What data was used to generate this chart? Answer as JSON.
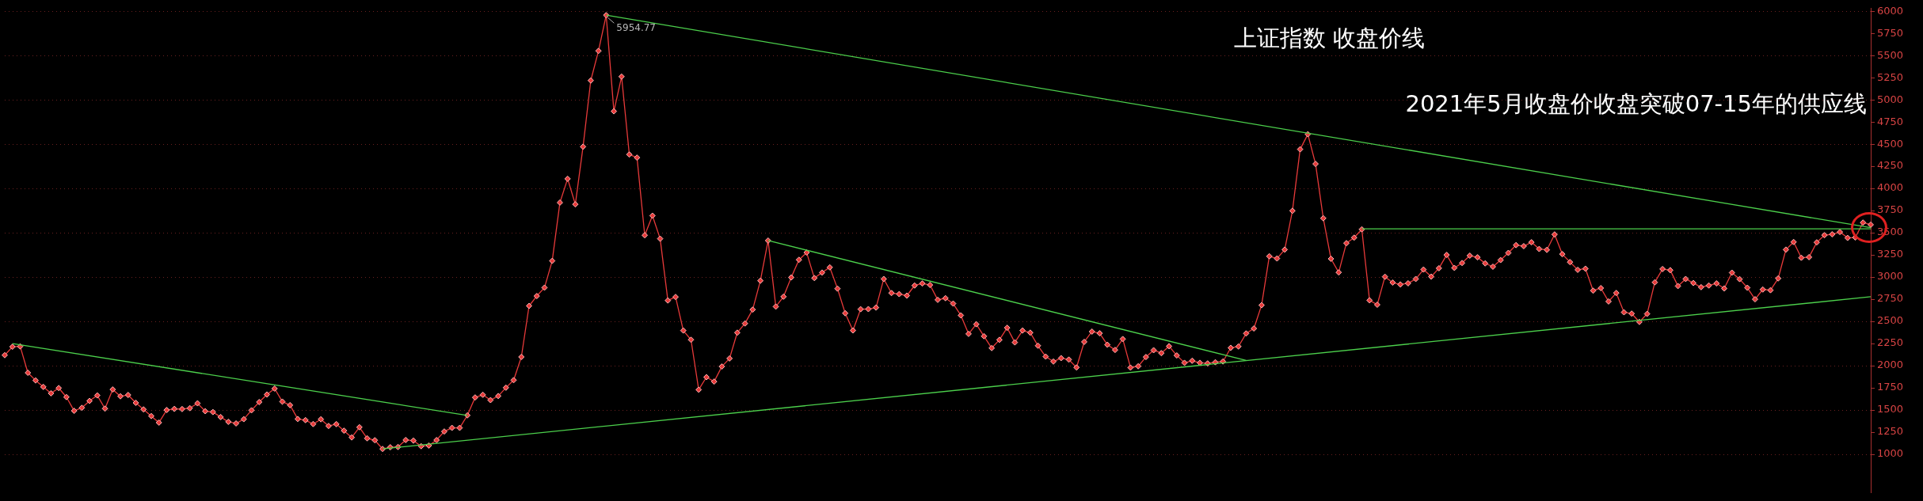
{
  "chart_data": {
    "type": "line",
    "title": "上证指数 收盘价线",
    "annotations": [
      "2021年5月收盘价收盘突破07-15年的供应线",
      "5954.77"
    ],
    "categories": [
      null,
      null,
      null,
      null,
      null,
      null,
      null,
      null,
      null,
      null,
      null,
      null,
      null,
      null,
      null,
      null,
      null,
      null,
      null,
      null,
      null,
      null,
      null,
      null,
      null,
      null,
      null,
      null,
      null,
      null,
      null,
      null,
      null,
      null,
      null,
      null,
      null,
      null,
      null,
      null,
      null,
      null,
      null,
      null,
      null,
      null,
      null,
      null,
      null,
      null,
      null,
      null,
      null,
      null,
      null,
      null,
      null,
      null,
      null,
      null,
      null,
      null,
      null,
      null,
      null,
      null,
      null,
      null,
      null,
      null,
      null,
      null,
      null,
      null,
      null,
      null,
      null,
      null,
      null,
      null,
      null,
      null,
      null,
      null,
      null,
      null,
      null,
      null,
      null,
      null,
      null,
      null,
      null,
      null,
      null,
      null,
      null,
      null,
      null,
      null,
      null,
      null,
      null,
      null,
      null,
      null,
      null,
      null,
      null,
      null,
      null,
      null,
      null,
      null,
      null,
      null,
      null,
      null,
      null,
      null,
      null,
      null,
      null,
      null,
      null,
      null,
      null,
      null,
      null,
      null,
      null,
      null,
      null,
      null,
      null,
      null,
      null,
      null,
      null,
      null,
      null,
      null,
      null,
      null,
      null,
      null,
      null,
      null,
      null,
      null,
      null,
      null,
      null,
      null,
      null,
      null,
      null,
      null,
      null,
      null,
      null,
      null,
      null,
      null,
      null,
      null,
      null,
      null,
      null,
      null,
      null,
      null,
      null,
      null,
      null,
      null,
      null,
      null,
      null,
      null,
      null,
      null,
      null,
      null,
      null,
      null,
      null,
      null,
      null,
      null,
      null,
      null,
      null,
      null,
      null,
      null,
      null,
      null,
      null,
      null,
      null,
      null,
      null,
      null,
      null,
      null,
      null,
      null,
      null,
      null,
      null,
      null,
      null,
      null,
      null,
      null,
      null,
      null,
      null,
      null,
      null,
      null,
      null,
      null,
      null,
      null,
      null,
      null,
      null,
      null,
      null,
      null,
      null,
      null,
      null,
      null,
      null,
      null,
      null,
      null,
      null,
      null,
      null
    ],
    "ylim": [
      570,
      6030
    ],
    "yticks": [
      1000,
      1250,
      1500,
      1750,
      2000,
      2250,
      2500,
      2750,
      3000,
      3250,
      3500,
      3750,
      4000,
      4250,
      4500,
      4750,
      5000,
      5250,
      5500,
      5750,
      6000
    ],
    "grid": "y",
    "legend": false,
    "tick_labels": "y",
    "marker": "diamond",
    "series": [
      {
        "color": "#e83a3a",
        "values": [
          2119,
          2214,
          2218,
          1920,
          1834,
          1761,
          1689,
          1748,
          1646,
          1491,
          1525,
          1603,
          1665,
          1516,
          1732,
          1655,
          1670,
          1581,
          1507,
          1432,
          1358,
          1500,
          1513,
          1511,
          1521,
          1576,
          1487,
          1477,
          1421,
          1367,
          1349,
          1397,
          1497,
          1590,
          1675,
          1742,
          1595,
          1555,
          1399,
          1386,
          1342,
          1396,
          1320,
          1341,
          1267,
          1191,
          1306,
          1181,
          1159,
          1061,
          1080,
          1083,
          1162,
          1155,
          1092,
          1099,
          1161,
          1258,
          1299,
          1299,
          1440,
          1642,
          1672,
          1612,
          1658,
          1752,
          1837,
          2099,
          2675,
          2786,
          2881,
          3183,
          3841,
          4109,
          3821,
          4471,
          5218,
          5552,
          5954.77,
          4871,
          5262,
          4383,
          4348,
          3472,
          3693,
          3433,
          2736,
          2776,
          2397,
          2293,
          1729,
          1871,
          1821,
          1991,
          2082,
          2373,
          2477,
          2633,
          2959,
          3412,
          2667,
          2779,
          2996,
          3195,
          3277,
          2989,
          3051,
          3110,
          2870,
          2592,
          2398,
          2638,
          2639,
          2656,
          2979,
          2820,
          2808,
          2791,
          2905,
          2928,
          2911,
          2743,
          2762,
          2701,
          2568,
          2359,
          2468,
          2333,
          2199,
          2292,
          2428,
          2263,
          2397,
          2373,
          2226,
          2103,
          2047,
          2086,
          2069,
          1980,
          2269,
          2385,
          2366,
          2237,
          2178,
          2301,
          1979,
          1994,
          2098,
          2175,
          2142,
          2220,
          2116,
          2033,
          2056,
          2033,
          2026,
          2039,
          2048,
          2202,
          2217,
          2364,
          2420,
          2683,
          3235,
          3210,
          3310,
          3748,
          4442,
          4612,
          4277,
          3664,
          3206,
          3053,
          3383,
          3445,
          3539,
          2738,
          2688,
          3004,
          2938,
          2917,
          2930,
          2979,
          3085,
          3005,
          3100,
          3250,
          3104,
          3159,
          3242,
          3223,
          3155,
          3117,
          3192,
          3273,
          3361,
          3349,
          3393,
          3317,
          3307,
          3481,
          3259,
          3169,
          3082,
          3095,
          2847,
          2876,
          2725,
          2821,
          2603,
          2588,
          2494,
          2585,
          2941,
          3091,
          3078,
          2899,
          2979,
          2933,
          2886,
          2905,
          2929,
          2872,
          3050,
          2977,
          2880,
          2750,
          2860,
          2852,
          2985,
          3310,
          3396,
          3218,
          3225,
          3392,
          3473,
          3483,
          3509,
          3442,
          3447,
          3615,
          3591
        ]
      },
      {
        "color": "#4cd04c",
        "marker": "none",
        "values": [
          null,
          2250,
          null,
          null,
          null,
          null,
          null,
          null,
          null,
          null,
          null,
          null,
          null,
          null,
          null,
          null,
          null,
          null,
          null,
          null,
          null,
          null,
          null,
          null,
          null,
          null,
          null,
          null,
          null,
          null,
          null,
          null,
          null,
          null,
          null,
          null,
          null,
          null,
          null,
          null,
          null,
          null,
          null,
          null,
          null,
          null,
          null,
          null,
          null,
          null,
          null,
          null,
          null,
          null,
          null,
          null,
          null,
          null,
          null,
          null,
          1440,
          null,
          null,
          null,
          null,
          null,
          null,
          null,
          null,
          null,
          null,
          null,
          null,
          null,
          null,
          null,
          null,
          null,
          null,
          null,
          null,
          null,
          null,
          null,
          null,
          null,
          null,
          null,
          null,
          null,
          null,
          null,
          null,
          null,
          null,
          null,
          null,
          null,
          null,
          null,
          null,
          null,
          null,
          null,
          null,
          null,
          null,
          null,
          null,
          null,
          null,
          null,
          null,
          null,
          null,
          null,
          null,
          null,
          null,
          null,
          null,
          null,
          null,
          null,
          null,
          null,
          null,
          null,
          null,
          null,
          null,
          null,
          null,
          null,
          null,
          null,
          null,
          null,
          null,
          null,
          null,
          null,
          null,
          null,
          null,
          null,
          null,
          null,
          null,
          null,
          null,
          null,
          null,
          null,
          null,
          null,
          null,
          null,
          null,
          null,
          null,
          null,
          null,
          null,
          null,
          null,
          null,
          null,
          null,
          null,
          null,
          null,
          null,
          null,
          null,
          null,
          null,
          null,
          null,
          null,
          null,
          null,
          null,
          null,
          null,
          null,
          null,
          null,
          null,
          null,
          null,
          null,
          null,
          null,
          null,
          null,
          null,
          null,
          null,
          null,
          null,
          null,
          null,
          null,
          null,
          null,
          null,
          null,
          null,
          null,
          null,
          null,
          null,
          null,
          null,
          null,
          null,
          null,
          null,
          null,
          null,
          null,
          null,
          null,
          null,
          null,
          null,
          null,
          null,
          null,
          null,
          null,
          null,
          null,
          null,
          null,
          null,
          null,
          null,
          null,
          null,
          null,
          null
        ]
      },
      {
        "color": "#4cd04c",
        "marker": "none",
        "values": [
          null,
          null,
          null,
          null,
          null,
          null,
          null,
          null,
          null,
          null,
          null,
          null,
          null,
          null,
          null,
          null,
          null,
          null,
          null,
          null,
          null,
          null,
          null,
          null,
          null,
          null,
          null,
          null,
          null,
          null,
          null,
          null,
          null,
          null,
          null,
          null,
          null,
          null,
          null,
          null,
          null,
          null,
          null,
          null,
          null,
          null,
          null,
          null,
          null,
          1061,
          null,
          null,
          null,
          null,
          null,
          null,
          null,
          null,
          null,
          null,
          null,
          null,
          null,
          null,
          null,
          null,
          null,
          null,
          null,
          null,
          null,
          null,
          null,
          null,
          null,
          null,
          null,
          null,
          null,
          null,
          null,
          null,
          null,
          null,
          null,
          null,
          null,
          null,
          null,
          null,
          null,
          null,
          null,
          null,
          null,
          null,
          null,
          null,
          null,
          null,
          null,
          null,
          null,
          null,
          null,
          null,
          null,
          null,
          null,
          null,
          null,
          null,
          null,
          null,
          null,
          null,
          null,
          null,
          null,
          null,
          null,
          null,
          null,
          null,
          null,
          null,
          null,
          null,
          null,
          null,
          null,
          null,
          null,
          null,
          null,
          null,
          null,
          null,
          null,
          null,
          null,
          null,
          null,
          null,
          null,
          null,
          null,
          null,
          null,
          null,
          null,
          null,
          null,
          null,
          null,
          null,
          null,
          null,
          null,
          null,
          null,
          null,
          null,
          null,
          null,
          null,
          null,
          null,
          null,
          null,
          null,
          null,
          null,
          null,
          null,
          null,
          null,
          null,
          null,
          null,
          null,
          null,
          null,
          null,
          null,
          null,
          null,
          null,
          null,
          null,
          null,
          null,
          null,
          null,
          null,
          null,
          null,
          null,
          null,
          null,
          null,
          null,
          null,
          null,
          null,
          null,
          null,
          null,
          null,
          null,
          null,
          null,
          null,
          null,
          null,
          null,
          null,
          null,
          null,
          null,
          null,
          null,
          null,
          null,
          null,
          null,
          null,
          null,
          null,
          null,
          null,
          null,
          null,
          null,
          null,
          null,
          null,
          null,
          null,
          null,
          null,
          null,
          2778
        ]
      },
      {
        "color": "#4cd04c",
        "marker": "none",
        "values": [
          null,
          null,
          null,
          null,
          null,
          null,
          null,
          null,
          null,
          null,
          null,
          null,
          null,
          null,
          null,
          null,
          null,
          null,
          null,
          null,
          null,
          null,
          null,
          null,
          null,
          null,
          null,
          null,
          null,
          null,
          null,
          null,
          null,
          null,
          null,
          null,
          null,
          null,
          null,
          null,
          null,
          null,
          null,
          null,
          null,
          null,
          null,
          null,
          null,
          null,
          null,
          null,
          null,
          null,
          null,
          null,
          null,
          null,
          null,
          null,
          null,
          null,
          null,
          null,
          null,
          null,
          null,
          null,
          null,
          null,
          null,
          null,
          null,
          null,
          null,
          null,
          null,
          null,
          5954.77,
          null,
          null,
          null,
          null,
          null,
          null,
          null,
          null,
          null,
          null,
          null,
          null,
          null,
          null,
          null,
          null,
          null,
          null,
          null,
          null,
          null,
          null,
          null,
          null,
          null,
          null,
          null,
          null,
          null,
          null,
          null,
          null,
          null,
          null,
          null,
          null,
          null,
          null,
          null,
          null,
          null,
          null,
          null,
          null,
          null,
          null,
          null,
          null,
          null,
          null,
          null,
          null,
          null,
          null,
          null,
          null,
          null,
          null,
          null,
          null,
          null,
          null,
          null,
          null,
          null,
          null,
          null,
          null,
          null,
          null,
          null,
          null,
          null,
          null,
          null,
          null,
          null,
          null,
          null,
          null,
          null,
          null,
          null,
          null,
          null,
          null,
          null,
          null,
          null,
          null,
          null,
          null,
          null,
          null,
          null,
          null,
          null,
          null,
          null,
          null,
          null,
          null,
          null,
          null,
          null,
          null,
          null,
          null,
          null,
          null,
          null,
          null,
          null,
          null,
          null,
          null,
          null,
          null,
          null,
          null,
          null,
          null,
          null,
          null,
          null,
          null,
          null,
          null,
          null,
          null,
          null,
          null,
          null,
          null,
          null,
          null,
          null,
          null,
          null,
          null,
          null,
          null,
          null,
          null,
          null,
          null,
          null,
          null,
          null,
          null,
          null,
          null,
          null,
          null,
          null,
          null,
          null,
          null,
          null,
          null,
          null,
          null,
          null,
          3557
        ]
      },
      {
        "color": "#4cd04c",
        "marker": "none",
        "values": [
          null,
          null,
          null,
          null,
          null,
          null,
          null,
          null,
          null,
          null,
          null,
          null,
          null,
          null,
          null,
          null,
          null,
          null,
          null,
          null,
          null,
          null,
          null,
          null,
          null,
          null,
          null,
          null,
          null,
          null,
          null,
          null,
          null,
          null,
          null,
          null,
          null,
          null,
          null,
          null,
          null,
          null,
          null,
          null,
          null,
          null,
          null,
          null,
          null,
          null,
          null,
          null,
          null,
          null,
          null,
          null,
          null,
          null,
          null,
          null,
          null,
          null,
          null,
          null,
          null,
          null,
          null,
          null,
          null,
          null,
          null,
          null,
          null,
          null,
          null,
          null,
          null,
          null,
          null,
          null,
          null,
          null,
          null,
          null,
          null,
          null,
          null,
          null,
          null,
          null,
          null,
          null,
          null,
          null,
          null,
          null,
          null,
          null,
          null,
          3412,
          null,
          null,
          null,
          null,
          null,
          null,
          null,
          null,
          null,
          null,
          null,
          null,
          null,
          null,
          null,
          null,
          null,
          null,
          null,
          null,
          null,
          null,
          null,
          null,
          null,
          null,
          null,
          null,
          null,
          null,
          null,
          null,
          null,
          null,
          null,
          null,
          null,
          null,
          null,
          null,
          null,
          null,
          null,
          null,
          null,
          null,
          null,
          null,
          null,
          null,
          null,
          null,
          null,
          null,
          null,
          null,
          null,
          null,
          null,
          null,
          null,
          2060,
          null,
          null,
          null,
          null,
          null,
          null,
          null,
          null,
          null,
          null,
          null,
          null,
          null,
          null,
          null,
          null,
          null,
          null,
          null,
          null,
          null,
          null,
          null,
          null,
          null,
          null,
          null,
          null,
          null,
          null,
          null,
          null,
          null,
          null,
          null,
          null,
          null,
          null,
          null,
          null,
          null,
          null,
          null,
          null,
          null,
          null,
          null,
          null,
          null,
          null,
          null,
          null,
          null,
          null,
          null,
          null,
          null,
          null,
          null,
          null,
          null,
          null,
          null,
          null,
          null,
          null,
          null,
          null,
          null,
          null,
          null,
          null,
          null,
          null,
          null,
          null,
          null,
          null,
          null,
          null,
          null
        ]
      },
      {
        "color": "#4cd04c",
        "marker": "none",
        "values": [
          null,
          null,
          null,
          null,
          null,
          null,
          null,
          null,
          null,
          null,
          null,
          null,
          null,
          null,
          null,
          null,
          null,
          null,
          null,
          null,
          null,
          null,
          null,
          null,
          null,
          null,
          null,
          null,
          null,
          null,
          null,
          null,
          null,
          null,
          null,
          null,
          null,
          null,
          null,
          null,
          null,
          null,
          null,
          null,
          null,
          null,
          null,
          null,
          null,
          null,
          null,
          null,
          null,
          null,
          null,
          null,
          null,
          null,
          null,
          null,
          null,
          null,
          null,
          null,
          null,
          null,
          null,
          null,
          null,
          null,
          null,
          null,
          null,
          null,
          null,
          null,
          null,
          null,
          null,
          null,
          null,
          null,
          null,
          null,
          null,
          null,
          null,
          null,
          null,
          null,
          null,
          null,
          null,
          null,
          null,
          null,
          null,
          null,
          null,
          null,
          null,
          null,
          null,
          null,
          null,
          null,
          null,
          null,
          null,
          null,
          null,
          null,
          null,
          null,
          null,
          null,
          null,
          null,
          null,
          null,
          null,
          null,
          null,
          null,
          null,
          null,
          null,
          null,
          null,
          null,
          null,
          null,
          null,
          null,
          null,
          null,
          null,
          null,
          null,
          null,
          null,
          null,
          null,
          null,
          null,
          null,
          null,
          null,
          null,
          null,
          null,
          null,
          null,
          null,
          null,
          null,
          null,
          null,
          null,
          null,
          null,
          null,
          null,
          null,
          null,
          null,
          null,
          null,
          null,
          null,
          null,
          null,
          null,
          null,
          null,
          null,
          3545,
          null,
          null,
          null,
          null,
          null,
          null,
          null,
          null,
          null,
          null,
          null,
          null,
          null,
          null,
          null,
          null,
          null,
          null,
          null,
          null,
          null,
          null,
          null,
          null,
          null,
          null,
          null,
          null,
          null,
          null,
          null,
          null,
          null,
          null,
          null,
          null,
          null,
          null,
          null,
          null,
          null,
          null,
          null,
          null,
          null,
          null,
          null,
          null,
          null,
          null,
          null,
          null,
          null,
          null,
          null,
          null,
          null,
          null,
          null,
          null,
          null,
          null,
          null,
          null,
          null,
          3545
        ]
      }
    ]
  }
}
